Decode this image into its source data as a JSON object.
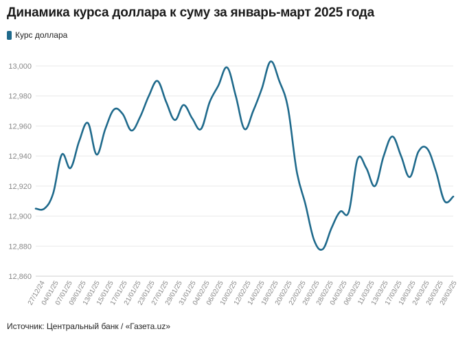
{
  "title": "Динамика курса доллара к суму за январь-март 2025 года",
  "legend": {
    "label": "Курс доллара",
    "color": "#1f6a8c"
  },
  "source": "Источник: Центральный банк / «Газета.uz»",
  "chart_data": {
    "type": "line",
    "title": "Динамика курса доллара к суму за январь-март 2025 года",
    "xlabel": "",
    "ylabel": "",
    "ylim": [
      12860,
      13000
    ],
    "yticks": [
      12860,
      12880,
      12900,
      12920,
      12940,
      12960,
      12980,
      13000
    ],
    "ytick_labels": [
      "12,860",
      "12,880",
      "12,900",
      "12,920",
      "12,940",
      "12,960",
      "12,980",
      "13,000"
    ],
    "grid": true,
    "legend_position": "top-left",
    "x_tick_labels": [
      "27/12/24",
      "04/01/25",
      "07/01/25",
      "09/01/25",
      "13/01/25",
      "15/01/25",
      "17/01/25",
      "21/01/25",
      "23/01/25",
      "27/01/25",
      "29/01/25",
      "31/01/25",
      "04/02/25",
      "06/02/25",
      "10/02/25",
      "12/02/25",
      "14/02/25",
      "18/02/25",
      "20/02/25",
      "22/02/25",
      "26/02/25",
      "28/02/25",
      "04/03/25",
      "06/03/25",
      "11/03/25",
      "13/03/25",
      "17/03/25",
      "19/03/25",
      "24/03/25",
      "26/03/25",
      "28/03/25"
    ],
    "series": [
      {
        "name": "Курс доллара",
        "color": "#1f6a8c",
        "values": [
          12905,
          12905,
          12915,
          12941,
          12932,
          12950,
          12962,
          12941,
          12958,
          12971,
          12968,
          12957,
          12966,
          12980,
          12990,
          12976,
          12964,
          12974,
          12965,
          12958,
          12976,
          12987,
          12999,
          12980,
          12958,
          12970,
          12985,
          13003,
          12990,
          12972,
          12930,
          12908,
          12884,
          12878,
          12892,
          12903,
          12903,
          12938,
          12932,
          12920,
          12940,
          12953,
          12940,
          12926,
          12943,
          12945,
          12930,
          12910,
          12913
        ]
      }
    ]
  }
}
